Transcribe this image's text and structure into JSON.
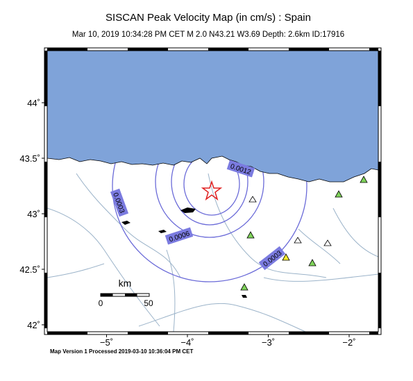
{
  "header": {
    "title": "SISCAN Peak Velocity Map (in cm/s) : Spain",
    "subtitle": "Mar 10, 2019 10:34:28 PM CET   M 2.0   N43.21 W3.69   Depth: 2.6km   ID:17916"
  },
  "map": {
    "lon_ticks": [
      {
        "value": -5,
        "label": "−5˚"
      },
      {
        "value": -4,
        "label": "−4˚"
      },
      {
        "value": -3,
        "label": "−3˚"
      },
      {
        "value": -2,
        "label": "−2˚"
      }
    ],
    "lat_ticks": [
      {
        "value": 44,
        "label": "44˚"
      },
      {
        "value": 43.5,
        "label": "43.5˚"
      },
      {
        "value": 43,
        "label": "43˚"
      },
      {
        "value": 42.5,
        "label": "42.5˚"
      },
      {
        "value": 42,
        "label": "42˚"
      }
    ],
    "contour_labels": [
      "0.0003",
      "0.0006",
      "0.0003",
      "0.0012"
    ],
    "scale_bar": {
      "unit": "km",
      "start": "0",
      "end": "50"
    }
  },
  "footer": "Map Version 1 Processed 2019-03-10 10:36:04 PM CET"
}
